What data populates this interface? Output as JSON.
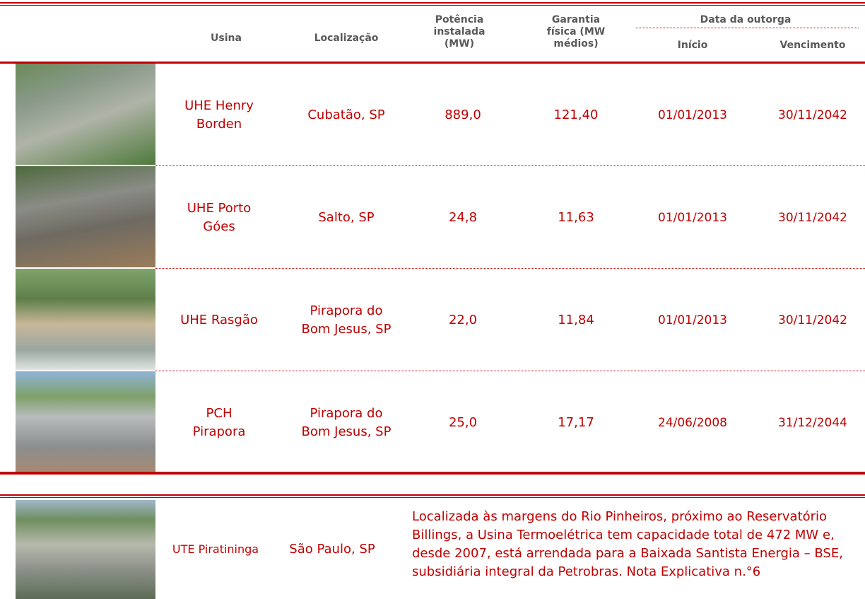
{
  "header": {
    "columns": [
      "Usina",
      "Localização",
      "Potência instalada (MW)",
      "Garantia física (MW médios)",
      "Data da outorga",
      "Início",
      "Vencimento"
    ]
  },
  "table": {
    "rows": [
      [
        "UHE Henry Borden",
        "Cubatão, SP",
        "889,0",
        "121,40",
        "01/01/2013",
        "30/11/2042"
      ],
      [
        "UHE Porto Góes",
        "Salto, SP",
        "24,8",
        "11,63",
        "01/01/2013",
        "30/11/2042"
      ],
      [
        "UHE Rasgão",
        "Pirapora do Bom Jesus, SP",
        "22,0",
        "11,84",
        "01/01/2013",
        "30/11/2042"
      ],
      [
        "PCH Pirapora",
        "Pirapora do Bom Jesus, SP",
        "25,0",
        "17,17",
        "24/06/2008",
        "31/12/2044"
      ]
    ]
  },
  "thermal": {
    "usina": "UTE Piratininga",
    "localizacao": "São Paulo, SP",
    "description": "Localizada às margens do Rio Pinheiros, próximo ao Reservatório Billings, a Usina Termoelétrica tem capacidade total de 472 MW e, desde 2007, está arrendada para a Baixada Santista Energia – BSE, subsidiária integral da Petrobras. Nota Explicativa n.°6"
  }
}
